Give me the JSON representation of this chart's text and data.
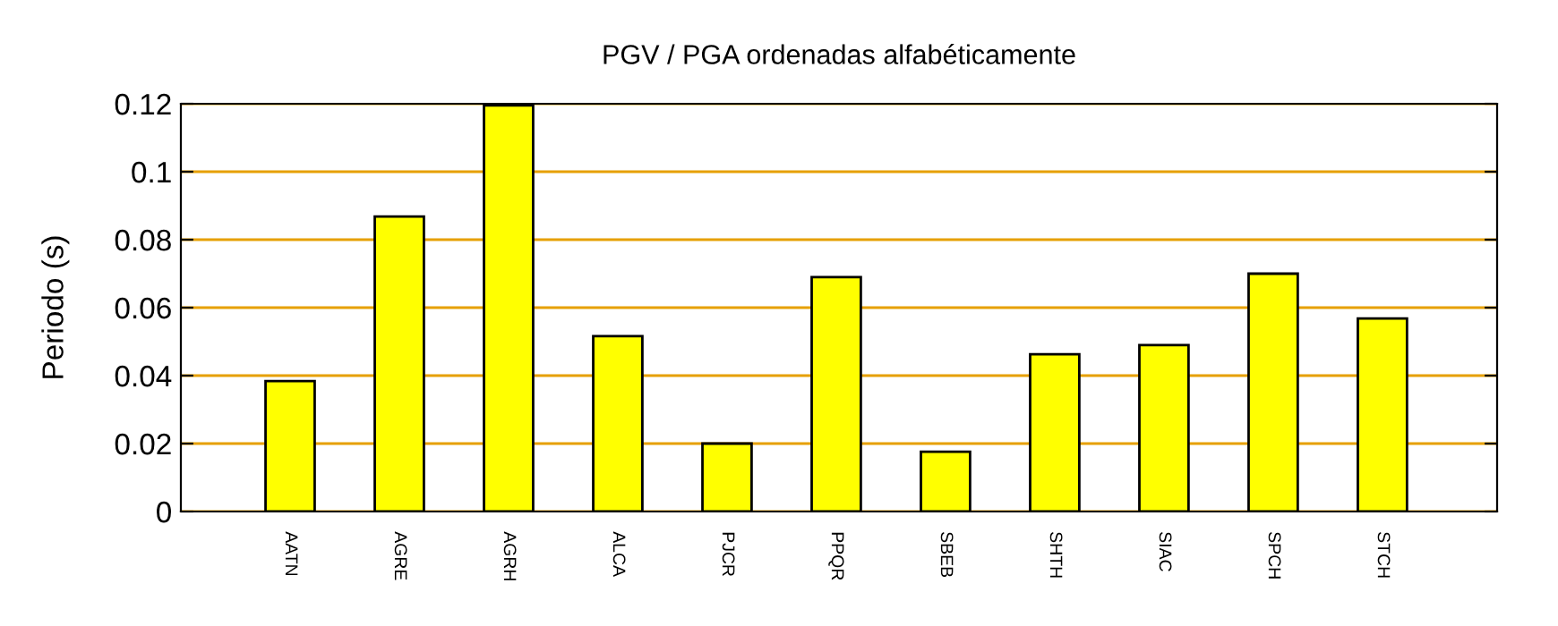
{
  "chart_data": {
    "type": "bar",
    "title": "PGV / PGA ordenadas alfabéticamente",
    "ylabel": "Periodo (s)",
    "categories": [
      "AATN",
      "AGRE",
      "AGRH",
      "ALCA",
      "PJCR",
      "PPQR",
      "SBEB",
      "SHTH",
      "SIAC",
      "SPCH",
      "STCH"
    ],
    "values": [
      0.0384,
      0.0868,
      0.1195,
      0.0516,
      0.02,
      0.069,
      0.0176,
      0.0463,
      0.049,
      0.07,
      0.0568
    ],
    "color": "#ffff00",
    "ylim": [
      0,
      0.12
    ],
    "yticks": [
      0,
      0.02,
      0.04,
      0.06,
      0.08,
      0.1,
      0.12
    ],
    "grid": "y"
  }
}
